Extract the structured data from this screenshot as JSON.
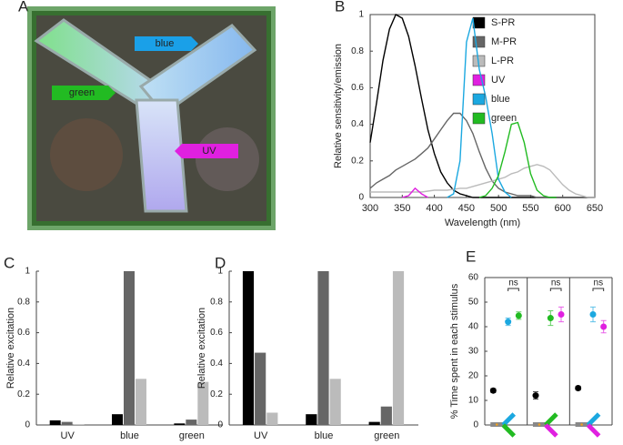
{
  "photo": {
    "panel": "A",
    "labels": [
      "blue",
      "green",
      "UV"
    ]
  },
  "chart_data": [
    {
      "type": "line",
      "panel": "B",
      "xlabel": "Wavelength (nm)",
      "ylabel": "Relative sensitivity/emission",
      "xlim": [
        300,
        650
      ],
      "xticks": [
        300,
        350,
        400,
        450,
        500,
        550,
        600,
        650
      ],
      "ylim": [
        0,
        1
      ],
      "yticks": [
        0,
        0.2,
        0.4,
        0.6,
        0.8,
        1
      ],
      "x": [
        300,
        310,
        320,
        330,
        340,
        350,
        360,
        370,
        380,
        390,
        400,
        410,
        420,
        430,
        440,
        450,
        460,
        470,
        480,
        490,
        500,
        510,
        520,
        530,
        540,
        550,
        560,
        570,
        580,
        590,
        600,
        610,
        620,
        630,
        640,
        650
      ],
      "series": [
        {
          "name": "S-PR",
          "color": "#000000",
          "values": [
            0.3,
            0.52,
            0.75,
            0.92,
            1.0,
            0.98,
            0.88,
            0.72,
            0.54,
            0.37,
            0.24,
            0.14,
            0.08,
            0.04,
            0.02,
            0.01,
            0,
            0,
            0,
            0,
            0,
            0,
            0,
            0,
            0,
            0,
            0,
            0,
            0,
            0,
            0,
            0,
            0,
            0,
            0,
            0
          ]
        },
        {
          "name": "M-PR",
          "color": "#666666",
          "values": [
            0.05,
            0.08,
            0.1,
            0.12,
            0.15,
            0.17,
            0.19,
            0.21,
            0.24,
            0.27,
            0.32,
            0.37,
            0.42,
            0.46,
            0.46,
            0.42,
            0.35,
            0.25,
            0.16,
            0.09,
            0.05,
            0.03,
            0.02,
            0.01,
            0.01,
            0.01,
            0,
            0,
            0,
            0,
            0,
            0,
            0,
            0,
            0,
            0
          ]
        },
        {
          "name": "L-PR",
          "color": "#bbbbbb",
          "values": [
            0.03,
            0.03,
            0.03,
            0.03,
            0.03,
            0.03,
            0.03,
            0.03,
            0.03,
            0.035,
            0.04,
            0.04,
            0.04,
            0.045,
            0.05,
            0.05,
            0.06,
            0.07,
            0.08,
            0.09,
            0.1,
            0.11,
            0.13,
            0.14,
            0.16,
            0.17,
            0.18,
            0.17,
            0.15,
            0.11,
            0.07,
            0.04,
            0.02,
            0.01,
            0,
            0
          ]
        },
        {
          "name": "UV",
          "color": "#e020e0",
          "values": [
            null,
            null,
            null,
            null,
            null,
            0,
            0.01,
            0.05,
            0.02,
            0,
            null,
            null,
            null,
            null,
            null,
            null,
            null,
            null,
            null,
            null,
            null,
            null,
            null,
            null,
            null,
            null,
            null,
            null,
            null,
            null,
            null,
            null,
            null,
            null,
            null,
            null
          ]
        },
        {
          "name": "blue",
          "color": "#1ba8e0",
          "values": [
            null,
            null,
            null,
            null,
            null,
            null,
            null,
            null,
            null,
            null,
            null,
            null,
            0,
            0.02,
            0.2,
            0.85,
            0.98,
            0.7,
            0.55,
            0.35,
            0.1,
            0.03,
            0,
            null,
            null,
            null,
            null,
            null,
            null,
            null,
            null,
            null,
            null,
            null,
            null,
            null
          ]
        },
        {
          "name": "green",
          "color": "#22bb22",
          "values": [
            null,
            null,
            null,
            null,
            null,
            null,
            null,
            null,
            null,
            null,
            null,
            null,
            null,
            null,
            null,
            null,
            null,
            0,
            0.01,
            0.05,
            0.12,
            0.25,
            0.4,
            0.41,
            0.3,
            0.13,
            0.04,
            0.01,
            0,
            0,
            null,
            null,
            null,
            null,
            null,
            null
          ]
        }
      ]
    },
    {
      "type": "bar",
      "panel": "C",
      "ylabel": "Relative excitation",
      "categories": [
        "UV",
        "blue",
        "green"
      ],
      "ylim": [
        0,
        1
      ],
      "yticks": [
        0,
        0.2,
        0.4,
        0.6,
        0.8,
        1
      ],
      "series": [
        {
          "color": "#000000",
          "values": [
            0.03,
            0.07,
            0.01
          ]
        },
        {
          "color": "#666666",
          "values": [
            0.02,
            1.0,
            0.035
          ]
        },
        {
          "color": "#bbbbbb",
          "values": [
            0.005,
            0.3,
            0.28
          ]
        }
      ]
    },
    {
      "type": "bar",
      "panel": "D",
      "ylabel": "Relative excitation",
      "categories": [
        "UV",
        "blue",
        "green"
      ],
      "ylim": [
        0,
        1
      ],
      "yticks": [
        0,
        0.2,
        0.4,
        0.6,
        0.8,
        1
      ],
      "series": [
        {
          "color": "#000000",
          "values": [
            1.0,
            0.07,
            0.02
          ]
        },
        {
          "color": "#666666",
          "values": [
            0.47,
            1.0,
            0.12
          ]
        },
        {
          "color": "#bbbbbb",
          "values": [
            0.08,
            0.3,
            1.0
          ]
        }
      ]
    },
    {
      "type": "errorbar",
      "panel": "E",
      "ylabel": "% Time spent in each stimulus",
      "ylim": [
        0,
        60
      ],
      "yticks": [
        0,
        10,
        20,
        30,
        40,
        50,
        60
      ],
      "groups": [
        {
          "annotation": "ns",
          "points": [
            {
              "color": "#000000",
              "value": 14,
              "error": 0.8
            },
            {
              "color": "#1ba8e0",
              "value": 42,
              "error": 1.5
            },
            {
              "color": "#22bb22",
              "value": 44.5,
              "error": 1.5
            }
          ]
        },
        {
          "annotation": "ns",
          "points": [
            {
              "color": "#000000",
              "value": 12,
              "error": 1.5
            },
            {
              "color": "#22bb22",
              "value": 43.5,
              "error": 3
            },
            {
              "color": "#e020e0",
              "value": 45,
              "error": 3
            }
          ]
        },
        {
          "annotation": "ns",
          "points": [
            {
              "color": "#000000",
              "value": 15,
              "error": 0.8
            },
            {
              "color": "#1ba8e0",
              "value": 45,
              "error": 3
            },
            {
              "color": "#e020e0",
              "value": 40,
              "error": 2.5
            }
          ]
        }
      ]
    }
  ]
}
